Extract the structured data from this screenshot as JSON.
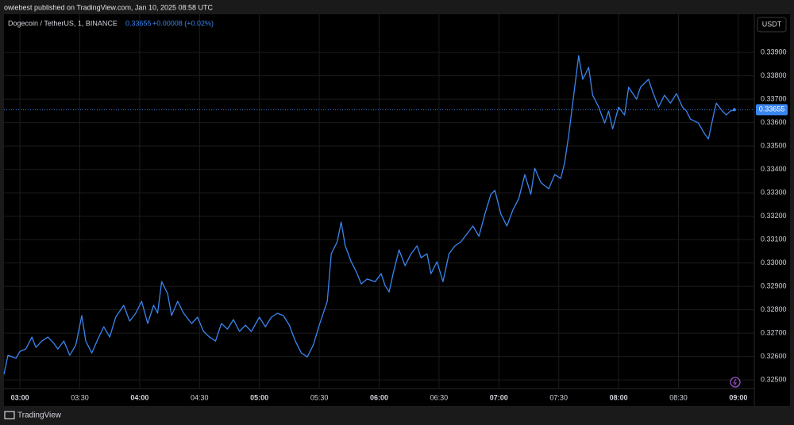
{
  "header": "owiebest published on TradingView.com, Jan 10, 2025 08:58 UTC",
  "footer": "TradingView",
  "chart_data": {
    "type": "line",
    "title": "Dogecoin / TetherUS, 1, BINANCE",
    "price": "0.33655",
    "change": "+0.00008 (+0.02%)",
    "y_axis_label": "USDT",
    "x": [
      "02:52",
      "02:54",
      "02:58",
      "03:00",
      "03:03",
      "03:06",
      "03:08",
      "03:11",
      "03:14",
      "03:17",
      "03:19",
      "03:22",
      "03:25",
      "03:28",
      "03:31",
      "03:33",
      "03:36",
      "03:39",
      "03:42",
      "03:45",
      "03:48",
      "03:52",
      "03:55",
      "03:58",
      "04:01",
      "04:04",
      "04:07",
      "04:09",
      "04:11",
      "04:14",
      "04:16",
      "04:19",
      "04:22",
      "04:26",
      "04:29",
      "04:32",
      "04:35",
      "04:38",
      "04:41",
      "04:44",
      "04:47",
      "04:50",
      "04:53",
      "04:56",
      "05:00",
      "05:03",
      "05:06",
      "05:09",
      "05:12",
      "05:15",
      "05:18",
      "05:21",
      "05:24",
      "05:27",
      "05:30",
      "05:34",
      "05:36",
      "05:39",
      "05:41",
      "05:43",
      "05:46",
      "05:49",
      "05:51",
      "05:54",
      "05:58",
      "06:01",
      "06:03",
      "06:05",
      "06:07",
      "06:10",
      "06:13",
      "06:16",
      "06:19",
      "06:21",
      "06:24",
      "06:26",
      "06:29",
      "06:32",
      "06:35",
      "06:38",
      "06:41",
      "06:44",
      "06:47",
      "06:50",
      "06:53",
      "06:56",
      "06:58",
      "07:01",
      "07:04",
      "07:07",
      "07:10",
      "07:13",
      "07:16",
      "07:18",
      "07:21",
      "07:25",
      "07:28",
      "07:31",
      "07:33",
      "07:35",
      "07:37",
      "07:40",
      "07:42",
      "07:45",
      "07:47",
      "07:50",
      "07:53",
      "07:55",
      "07:57",
      "08:00",
      "08:03",
      "08:05",
      "08:09",
      "08:11",
      "08:15",
      "08:17",
      "08:20",
      "08:23",
      "08:26",
      "08:29",
      "08:32",
      "08:34",
      "08:36",
      "08:40",
      "08:43",
      "08:45",
      "08:48",
      "08:49",
      "08:52",
      "08:54",
      "08:56",
      "08:58"
    ],
    "series": [
      {
        "name": "DOGEUSDT",
        "color": "#3a85f0",
        "values": [
          0.32524,
          0.32605,
          0.32592,
          0.32622,
          0.32632,
          0.32683,
          0.32639,
          0.32666,
          0.32683,
          0.32656,
          0.32632,
          0.32666,
          0.32605,
          0.32649,
          0.32775,
          0.32666,
          0.32615,
          0.32673,
          0.32727,
          0.32683,
          0.32768,
          0.32819,
          0.32751,
          0.32785,
          0.32836,
          0.32741,
          0.32819,
          0.32785,
          0.3292,
          0.32869,
          0.32775,
          0.32836,
          0.32785,
          0.32741,
          0.32768,
          0.32707,
          0.32683,
          0.32666,
          0.32741,
          0.32717,
          0.32758,
          0.32707,
          0.32734,
          0.32707,
          0.32768,
          0.32727,
          0.32768,
          0.32785,
          0.32775,
          0.32734,
          0.32666,
          0.32615,
          0.32598,
          0.32649,
          0.32734,
          0.32836,
          0.33039,
          0.3309,
          0.33175,
          0.33073,
          0.33005,
          0.32954,
          0.3291,
          0.32931,
          0.3292,
          0.32954,
          0.32903,
          0.32876,
          0.32954,
          0.33056,
          0.32988,
          0.33039,
          0.33073,
          0.33022,
          0.33039,
          0.32954,
          0.33005,
          0.3292,
          0.33039,
          0.33073,
          0.3309,
          0.33124,
          0.33158,
          0.33114,
          0.33209,
          0.33293,
          0.3331,
          0.33209,
          0.33158,
          0.33226,
          0.33276,
          0.33378,
          0.33293,
          0.33405,
          0.33344,
          0.33317,
          0.33378,
          0.33361,
          0.33429,
          0.33547,
          0.33683,
          0.33886,
          0.33785,
          0.33836,
          0.33717,
          0.33666,
          0.33598,
          0.33649,
          0.33573,
          0.33666,
          0.33632,
          0.33751,
          0.337,
          0.33751,
          0.33785,
          0.33734,
          0.33666,
          0.33717,
          0.33683,
          0.33724,
          0.33666,
          0.33649,
          0.33615,
          0.33598,
          0.33553,
          0.3353,
          0.33649,
          0.33683,
          0.33649,
          0.33632,
          0.33649,
          0.33655
        ]
      }
    ],
    "last_value": 0.33655,
    "xlim": [
      "02:52",
      "09:08"
    ],
    "xticks": [
      "03:00",
      "03:30",
      "04:00",
      "04:30",
      "05:00",
      "05:30",
      "06:00",
      "06:30",
      "07:00",
      "07:30",
      "08:00",
      "08:30",
      "09:00"
    ],
    "ylim": [
      0.32463,
      0.34063
    ],
    "yticks": [
      {
        "value": 0.325,
        "label": "0.32500"
      },
      {
        "value": 0.326,
        "label": "0.32600"
      },
      {
        "value": 0.327,
        "label": "0.32700"
      },
      {
        "value": 0.328,
        "label": "0.32800"
      },
      {
        "value": 0.329,
        "label": "0.32900"
      },
      {
        "value": 0.33,
        "label": "0.33000"
      },
      {
        "value": 0.331,
        "label": "0.33100"
      },
      {
        "value": 0.332,
        "label": "0.33200"
      },
      {
        "value": 0.333,
        "label": "0.33300"
      },
      {
        "value": 0.334,
        "label": "0.33400"
      },
      {
        "value": 0.335,
        "label": "0.33500"
      },
      {
        "value": 0.336,
        "label": "0.33600"
      },
      {
        "value": 0.337,
        "label": "0.33700"
      },
      {
        "value": 0.338,
        "label": "0.33800"
      },
      {
        "value": 0.339,
        "label": "0.33900"
      }
    ],
    "grid": true
  }
}
